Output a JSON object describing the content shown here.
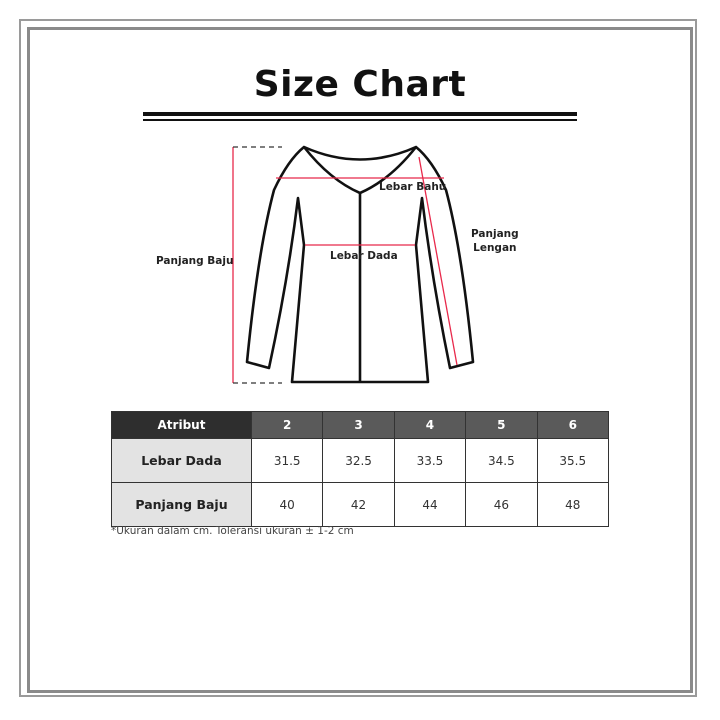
{
  "title": "Size Chart",
  "diagram": {
    "labels": {
      "lebar_bahu": "Lebar Bahu",
      "lebar_dada": "Lebar Dada",
      "panjang_lengan_1": "Panjang",
      "panjang_lengan_2": "Lengan",
      "panjang_baju": "Panjang Baju"
    },
    "colors": {
      "outline": "#111111",
      "measure": "#e8294b"
    }
  },
  "table": {
    "header": [
      "Atribut",
      "2",
      "3",
      "4",
      "5",
      "6"
    ],
    "rows": [
      {
        "label": "Lebar Dada",
        "values": [
          "31.5",
          "32.5",
          "33.5",
          "34.5",
          "35.5"
        ]
      },
      {
        "label": "Panjang Baju",
        "values": [
          "40",
          "42",
          "44",
          "46",
          "48"
        ]
      }
    ]
  },
  "note": "*Ukuran dalam cm. Toleransi ukuran ± 1-2 cm"
}
